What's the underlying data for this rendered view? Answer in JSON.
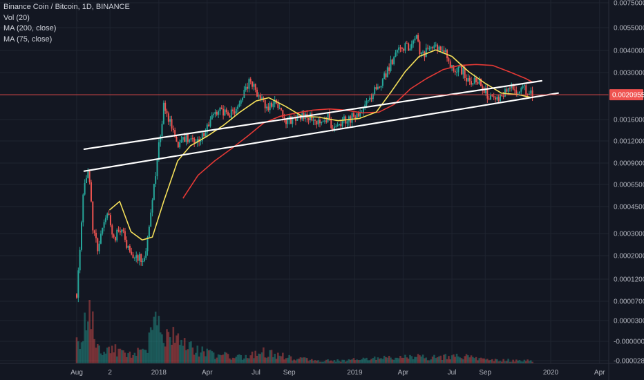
{
  "header": {
    "symbol_line": "Binance Coin / Bitcoin, 1D, BINANCE",
    "indicators": [
      "Vol (20)",
      "MA (200, close)",
      "MA (75, close)"
    ]
  },
  "colors": {
    "background": "#131722",
    "grid": "#1f2430",
    "axis_text": "#b2b5be",
    "price_line": "#e04949",
    "price_badge": "#ef5350",
    "up_candle": "#26a69a",
    "down_candle": "#ef5350",
    "ma200": "#e53935",
    "ma75": "#f5e05a",
    "trendline": "#ffffff"
  },
  "chart_data": {
    "type": "candlestick",
    "title": "Binance Coin / Bitcoin, 1D, BINANCE",
    "y_scale": "log",
    "grid": true,
    "x_axis": {
      "ticks": [
        {
          "label": "Aug",
          "date": "2017-08-01"
        },
        {
          "label": "2",
          "date": "2017-10-02"
        },
        {
          "label": "2018",
          "date": "2018-01-01"
        },
        {
          "label": "Apr",
          "date": "2018-04-01"
        },
        {
          "label": "Jul",
          "date": "2018-07-01"
        },
        {
          "label": "Sep",
          "date": "2018-09-01"
        },
        {
          "label": "2019",
          "date": "2019-01-01"
        },
        {
          "label": "Apr",
          "date": "2019-04-01"
        },
        {
          "label": "Jul",
          "date": "2019-07-01"
        },
        {
          "label": "Sep",
          "date": "2019-09-01"
        },
        {
          "label": "2020",
          "date": "2020-01-01"
        },
        {
          "label": "Apr",
          "date": "2020-04-01"
        }
      ]
    },
    "y_axis": {
      "tick_labels": [
        "0.0075000",
        "0.0055000",
        "0.0040000",
        "0.0030000",
        "0.0016000",
        "0.0012000",
        "0.0009000",
        "0.0006500",
        "0.0004500",
        "0.0003000",
        "0.0002000",
        "0.0001200",
        "0.0000700",
        "0.0000300",
        "-0.0000000",
        "-0.0000280"
      ]
    },
    "current_price": "0.0020955",
    "price_series": {
      "name": "BNBBTC",
      "points": [
        [
          "2017-08-01",
          9.5e-05
        ],
        [
          "2017-08-15",
          0.00055
        ],
        [
          "2017-08-22",
          0.00068
        ],
        [
          "2017-09-01",
          0.00025
        ],
        [
          "2017-09-10",
          0.00019
        ],
        [
          "2017-09-25",
          0.00035
        ],
        [
          "2017-10-10",
          0.00023
        ],
        [
          "2017-10-25",
          0.00026
        ],
        [
          "2017-11-05",
          0.00019
        ],
        [
          "2017-11-20",
          0.00017
        ],
        [
          "2017-12-05",
          0.00016
        ],
        [
          "2017-12-15",
          0.0003
        ],
        [
          "2017-12-25",
          0.0006
        ],
        [
          "2018-01-05",
          0.0012
        ],
        [
          "2018-01-10",
          0.0019
        ],
        [
          "2018-01-20",
          0.0014
        ],
        [
          "2018-02-05",
          0.00095
        ],
        [
          "2018-02-20",
          0.0011
        ],
        [
          "2018-03-10",
          0.00095
        ],
        [
          "2018-03-25",
          0.0011
        ],
        [
          "2018-04-10",
          0.0015
        ],
        [
          "2018-04-25",
          0.0017
        ],
        [
          "2018-05-10",
          0.0015
        ],
        [
          "2018-05-25",
          0.0017
        ],
        [
          "2018-06-10",
          0.0022
        ],
        [
          "2018-06-20",
          0.0027
        ],
        [
          "2018-07-01",
          0.0021
        ],
        [
          "2018-07-20",
          0.0017
        ],
        [
          "2018-08-05",
          0.0018
        ],
        [
          "2018-08-25",
          0.0014
        ],
        [
          "2018-09-15",
          0.00145
        ],
        [
          "2018-10-05",
          0.0015
        ],
        [
          "2018-10-25",
          0.0014
        ],
        [
          "2018-11-10",
          0.0015
        ],
        [
          "2018-11-25",
          0.00125
        ],
        [
          "2018-12-10",
          0.0014
        ],
        [
          "2019-01-01",
          0.0015
        ],
        [
          "2019-01-20",
          0.0017
        ],
        [
          "2019-02-10",
          0.0023
        ],
        [
          "2019-02-25",
          0.0028
        ],
        [
          "2019-03-10",
          0.0035
        ],
        [
          "2019-03-20",
          0.0041
        ],
        [
          "2019-04-05",
          0.0046
        ],
        [
          "2019-04-15",
          0.0043
        ],
        [
          "2019-04-25",
          0.0051
        ],
        [
          "2019-05-05",
          0.0038
        ],
        [
          "2019-05-20",
          0.0042
        ],
        [
          "2019-06-05",
          0.0044
        ],
        [
          "2019-06-20",
          0.004
        ],
        [
          "2019-07-05",
          0.0029
        ],
        [
          "2019-07-20",
          0.0031
        ],
        [
          "2019-08-05",
          0.0025
        ],
        [
          "2019-08-20",
          0.0027
        ],
        [
          "2019-09-05",
          0.0021
        ],
        [
          "2019-09-20",
          0.0019
        ],
        [
          "2019-10-05",
          0.0021
        ],
        [
          "2019-10-20",
          0.0023
        ],
        [
          "2019-11-01",
          0.0022
        ],
        [
          "2019-11-10",
          0.0024
        ],
        [
          "2019-11-20",
          0.0021
        ],
        [
          "2019-11-28",
          0.0020955
        ]
      ]
    },
    "ma75": {
      "name": "MA (75, close)",
      "points": [
        [
          "2017-10-01",
          0.00035
        ],
        [
          "2017-10-20",
          0.0004
        ],
        [
          "2017-11-10",
          0.00025
        ],
        [
          "2017-12-01",
          0.00022
        ],
        [
          "2017-12-20",
          0.00023
        ],
        [
          "2018-01-10",
          0.0004
        ],
        [
          "2018-02-05",
          0.00075
        ],
        [
          "2018-03-01",
          0.00095
        ],
        [
          "2018-04-01",
          0.0011
        ],
        [
          "2018-05-01",
          0.0013
        ],
        [
          "2018-06-01",
          0.0016
        ],
        [
          "2018-07-01",
          0.0019
        ],
        [
          "2018-07-25",
          0.002
        ],
        [
          "2018-08-25",
          0.00175
        ],
        [
          "2018-09-25",
          0.0015
        ],
        [
          "2018-10-25",
          0.00148
        ],
        [
          "2018-12-01",
          0.0014
        ],
        [
          "2019-01-10",
          0.00145
        ],
        [
          "2019-02-10",
          0.0016
        ],
        [
          "2019-03-10",
          0.0022
        ],
        [
          "2019-04-05",
          0.003
        ],
        [
          "2019-05-01",
          0.0038
        ],
        [
          "2019-06-01",
          0.0042
        ],
        [
          "2019-07-01",
          0.0038
        ],
        [
          "2019-08-01",
          0.003
        ],
        [
          "2019-09-01",
          0.0025
        ],
        [
          "2019-10-01",
          0.00215
        ],
        [
          "2019-11-01",
          0.0021
        ],
        [
          "2019-11-28",
          0.002
        ]
      ]
    },
    "ma200": {
      "name": "MA (200, close)",
      "points": [
        [
          "2018-02-15",
          0.00042
        ],
        [
          "2018-03-15",
          0.0006
        ],
        [
          "2018-04-15",
          0.00075
        ],
        [
          "2018-05-15",
          0.0009
        ],
        [
          "2018-06-15",
          0.0011
        ],
        [
          "2018-07-15",
          0.00135
        ],
        [
          "2018-08-15",
          0.0015
        ],
        [
          "2018-09-15",
          0.00158
        ],
        [
          "2018-10-15",
          0.00165
        ],
        [
          "2018-11-15",
          0.00168
        ],
        [
          "2018-12-15",
          0.00165
        ],
        [
          "2019-01-15",
          0.00158
        ],
        [
          "2019-02-15",
          0.0016
        ],
        [
          "2019-03-15",
          0.0018
        ],
        [
          "2019-04-15",
          0.0023
        ],
        [
          "2019-05-15",
          0.0027
        ],
        [
          "2019-06-15",
          0.0031
        ],
        [
          "2019-07-15",
          0.0033
        ],
        [
          "2019-08-15",
          0.00335
        ],
        [
          "2019-09-15",
          0.0033
        ],
        [
          "2019-10-15",
          0.003
        ],
        [
          "2019-11-15",
          0.0027
        ],
        [
          "2019-11-28",
          0.00255
        ]
      ]
    },
    "trendlines": [
      {
        "start": [
          "2017-08-15",
          0.0009
        ],
        "end": [
          "2019-12-15",
          0.0026
        ]
      },
      {
        "start": [
          "2017-08-15",
          0.00064
        ],
        "end": [
          "2020-01-15",
          0.00215
        ]
      }
    ],
    "volume_series": {
      "name": "Vol (20)",
      "points": [
        [
          "2017-08-01",
          0.5
        ],
        [
          "2017-08-10",
          0.35
        ],
        [
          "2017-08-20",
          0.9
        ],
        [
          "2017-08-25",
          1.0
        ],
        [
          "2017-09-05",
          0.35
        ],
        [
          "2017-09-20",
          0.2
        ],
        [
          "2017-10-10",
          0.25
        ],
        [
          "2017-11-01",
          0.15
        ],
        [
          "2017-12-01",
          0.2
        ],
        [
          "2018-01-05",
          0.8
        ],
        [
          "2018-01-10",
          0.6
        ],
        [
          "2018-02-10",
          0.35
        ],
        [
          "2018-03-15",
          0.22
        ],
        [
          "2018-04-15",
          0.15
        ],
        [
          "2018-06-10",
          0.12
        ],
        [
          "2018-07-10",
          0.22
        ],
        [
          "2018-08-10",
          0.15
        ],
        [
          "2018-09-15",
          0.08
        ],
        [
          "2018-11-15",
          0.05
        ],
        [
          "2019-01-15",
          0.07
        ],
        [
          "2019-03-10",
          0.1
        ],
        [
          "2019-04-15",
          0.12
        ],
        [
          "2019-06-05",
          0.1
        ],
        [
          "2019-07-10",
          0.15
        ],
        [
          "2019-09-01",
          0.06
        ],
        [
          "2019-11-28",
          0.05
        ]
      ]
    }
  }
}
